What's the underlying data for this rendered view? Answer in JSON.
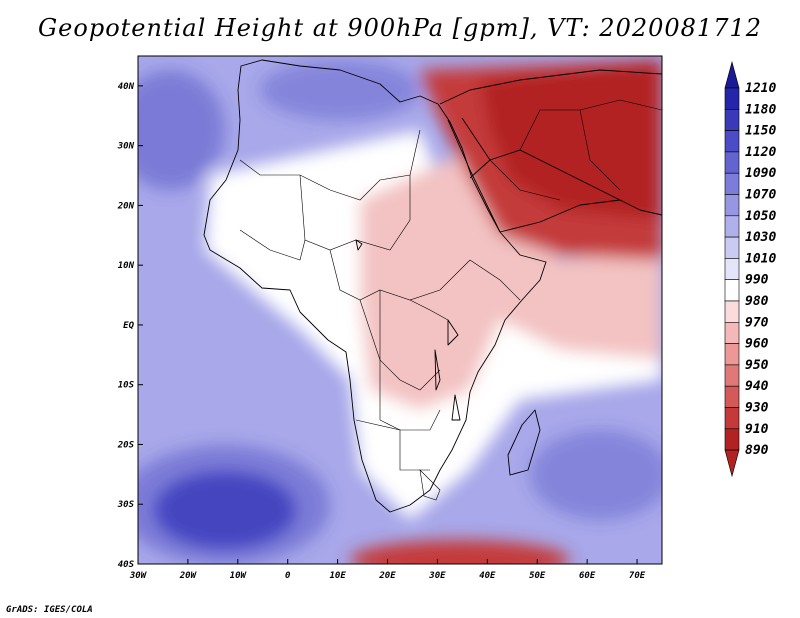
{
  "title": "Geopotential Height at 900hPa [gpm], VT: 2020081712",
  "credit": "GrADS: IGES/COLA",
  "map": {
    "region": "Africa and Middle East",
    "variable": "Geopotential Height",
    "level": "900hPa",
    "units": "gpm",
    "valid_time": "2020081712",
    "lon_range": [
      -30,
      75
    ],
    "lat_range": [
      -40,
      45
    ],
    "lon_ticks": [
      "30W",
      "20W",
      "10W",
      "0",
      "10E",
      "20E",
      "30E",
      "40E",
      "50E",
      "60E",
      "70E"
    ],
    "lat_ticks": [
      "40N",
      "30N",
      "20N",
      "10N",
      "EQ",
      "10S",
      "20S",
      "30S",
      "40S"
    ]
  },
  "colorbar": {
    "levels": [
      "1210",
      "1180",
      "1150",
      "1120",
      "1090",
      "1070",
      "1050",
      "1030",
      "1010",
      "990",
      "980",
      "970",
      "960",
      "950",
      "940",
      "930",
      "910",
      "890"
    ],
    "colors": [
      "#1a1a96",
      "#2525aa",
      "#3a3ab9",
      "#4c4cc6",
      "#6464d0",
      "#7c7cda",
      "#9696e2",
      "#b0b0ea",
      "#cacaf2",
      "#e4e4fa",
      "#ffffff",
      "#fbdcdc",
      "#f4b8b8",
      "#ec9898",
      "#e07878",
      "#d45a5a",
      "#c43a3a",
      "#b22222"
    ]
  },
  "features": {
    "colors": {
      "ocean": "#a8a8ea",
      "deep_blue": "#4545c0",
      "land_white": "#ffffff",
      "pink": "#f3c2c2",
      "red": "#c43a3a",
      "dark_red": "#b22222"
    }
  }
}
